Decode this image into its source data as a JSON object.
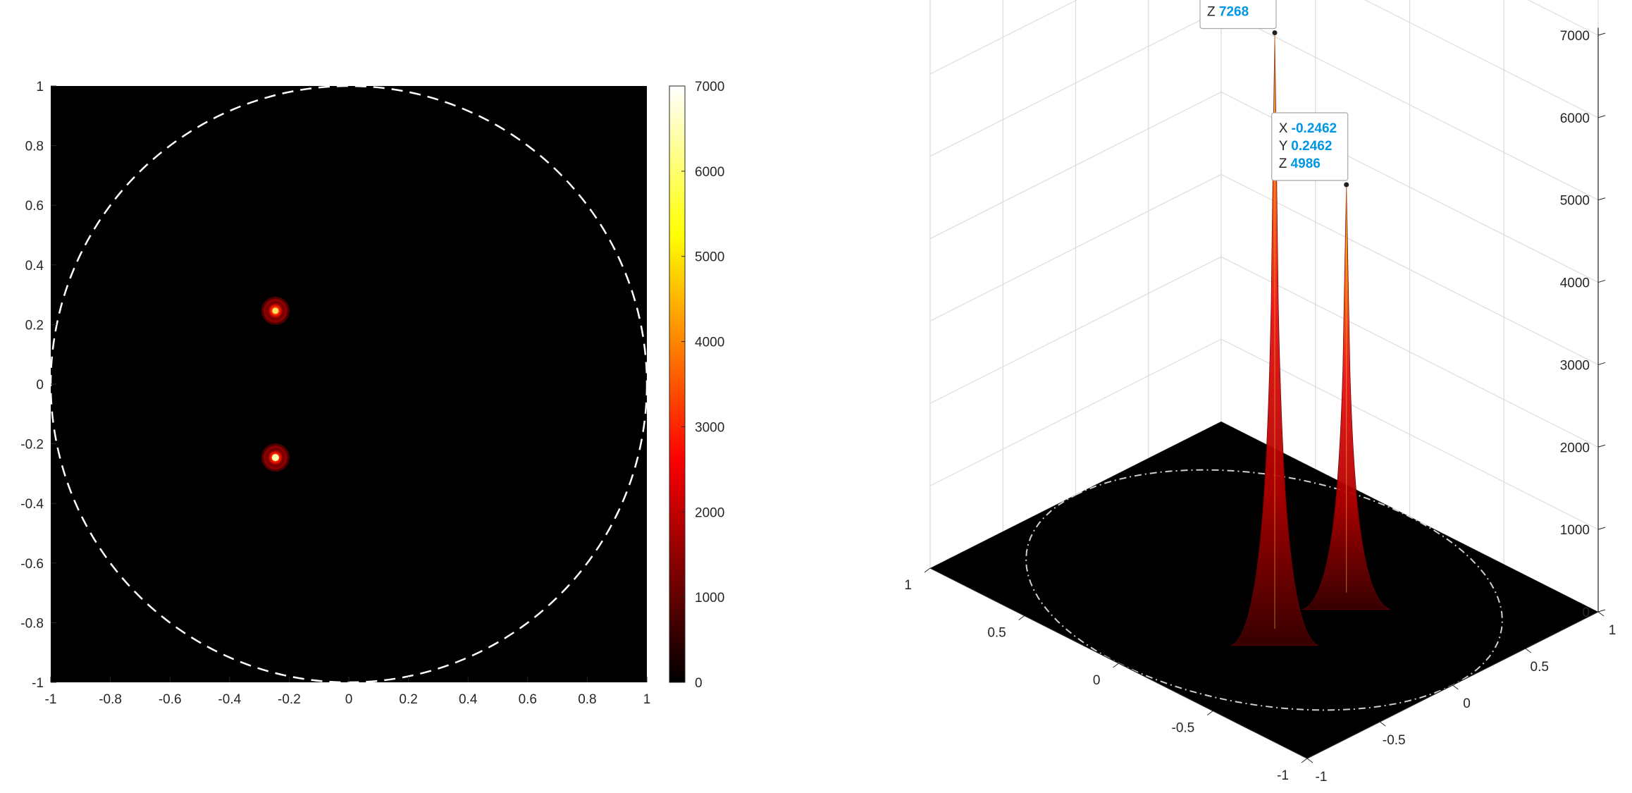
{
  "chart_data": [
    {
      "type": "heatmap",
      "title": "",
      "xlabel": "",
      "ylabel": "",
      "xlim": [
        -1,
        1
      ],
      "ylim": [
        -1,
        1
      ],
      "xticks": [
        -1,
        -0.8,
        -0.6,
        -0.4,
        -0.2,
        0,
        0.2,
        0.4,
        0.6,
        0.8,
        1
      ],
      "yticks": [
        1,
        0.8,
        0.6,
        0.4,
        0.2,
        0,
        -0.2,
        -0.4,
        -0.6,
        -0.8,
        -1
      ],
      "colormap": "hot",
      "background": "#000000",
      "boundary": {
        "shape": "circle",
        "center": [
          0,
          0
        ],
        "radius": 1,
        "style": "dashed",
        "color": "#ffffff"
      },
      "peaks": [
        {
          "x": -0.2462,
          "y": 0.2462,
          "z": 4986
        },
        {
          "x": -0.2462,
          "y": -0.2462,
          "z": 7268
        }
      ],
      "colorbar": {
        "limits": [
          0,
          7000
        ],
        "ticks": [
          7000,
          6000,
          5000,
          4000,
          3000,
          2000,
          1000,
          0
        ]
      }
    },
    {
      "type": "surface3d",
      "title": "",
      "xlabel": "",
      "ylabel": "",
      "zlabel": "",
      "xlim": [
        -1,
        1
      ],
      "ylim": [
        -1,
        1
      ],
      "zlim": [
        0,
        7000
      ],
      "xticks": [
        -1,
        -0.5,
        0,
        0.5,
        1
      ],
      "yticks": [
        1,
        0.5,
        0,
        -0.5,
        -1
      ],
      "zticks": [
        7000,
        6000,
        5000,
        4000,
        3000,
        2000,
        1000,
        0
      ],
      "grid": true,
      "colormap": "hot",
      "peaks": [
        {
          "x": -0.2462,
          "y": 0.2462,
          "z": 4986
        },
        {
          "x": -0.2462,
          "y": -0.2462,
          "z": 7268
        }
      ],
      "datatips": [
        {
          "x_label": "X",
          "x_value": "-0.2462",
          "y_label": "Y",
          "y_value": "0.2462",
          "z_label": "Z",
          "z_value": "4986"
        },
        {
          "x_label": "X",
          "x_value": "-0.2462",
          "y_label": "Y",
          "y_value": "-0.2462",
          "z_label": "Z",
          "z_value": "7268"
        }
      ]
    }
  ]
}
